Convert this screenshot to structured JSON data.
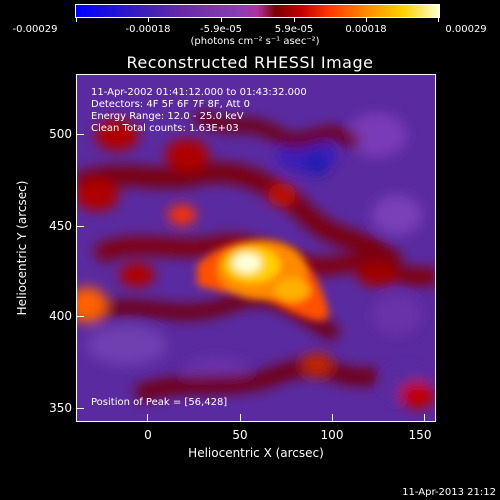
{
  "colorbar": {
    "tick_labels": [
      "-0.00029",
      "-0.00018",
      "-5.9e-05",
      "5.9e-05",
      "0.00018",
      "0.00029"
    ],
    "units_label": "(photons cm⁻² s⁻¹ asec⁻²)"
  },
  "title": "Reconstructed RHESSI Image",
  "info": {
    "time_range": "11-Apr-2002 01:41:12.000 to 01:43:32.000",
    "detectors": "Detectors: 4F 5F 6F 7F 8F, Att 0",
    "energy_range": "Energy Range: 12.0 - 25.0 keV",
    "algorithm": "Clean    Total counts: 1.63E+03",
    "peak": "Position of Peak = [56,428]"
  },
  "timestamp": "11-Apr-2013 21:12",
  "chart_data": {
    "type": "heatmap",
    "title": "Reconstructed RHESSI Image",
    "xlabel": "Heliocentric X (arcsec)",
    "ylabel": "Heliocentric Y (arcsec)",
    "xlim": [
      -40,
      150
    ],
    "ylim": [
      340,
      535
    ],
    "x_ticks": [
      "0",
      "50",
      "100",
      "150"
    ],
    "y_ticks": [
      "350",
      "400",
      "450",
      "500"
    ],
    "colorbar_range": [
      -0.00029,
      0.00029
    ],
    "peak_position": [
      56,
      428
    ],
    "colormap": "rhessi (blue-purple-red-yellow-white)"
  }
}
